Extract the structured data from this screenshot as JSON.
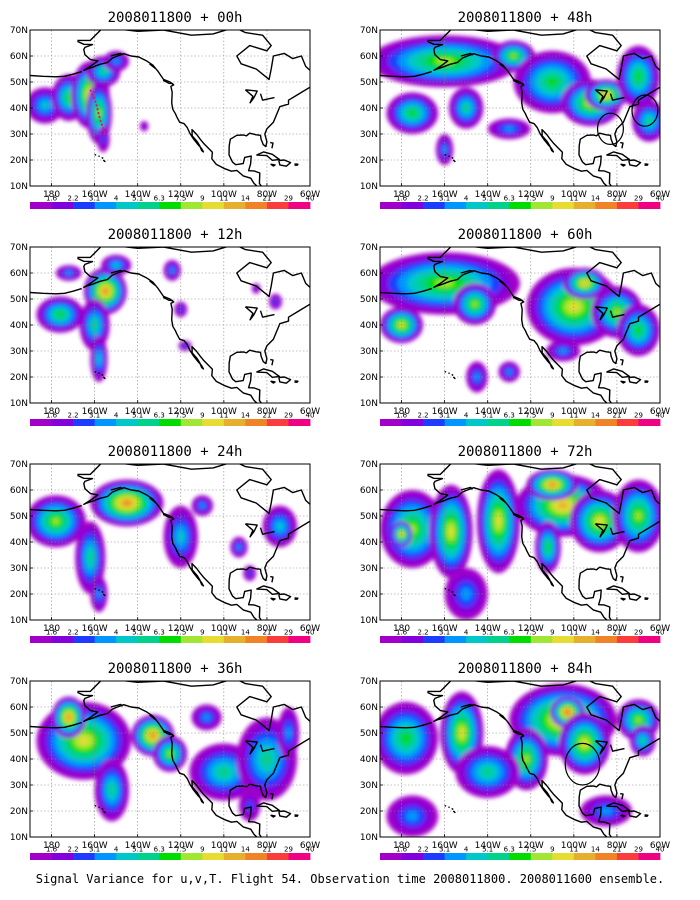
{
  "figure": {
    "caption": "Signal Variance for u,v,T. Flight 54. Observation time 2008011800. 2008011600 ensemble."
  },
  "chart_data": {
    "type": "heatmap",
    "axes": {
      "x_range": [
        -190,
        -60
      ],
      "y_range": [
        10,
        70
      ],
      "x_ticks": [
        -180,
        -160,
        -140,
        -120,
        -100,
        -80,
        -60
      ],
      "x_tick_labels": [
        "180",
        "160W",
        "140W",
        "120W",
        "100W",
        "80W",
        "60W"
      ],
      "y_ticks": [
        10,
        20,
        30,
        40,
        50,
        60,
        70
      ],
      "y_tick_labels": [
        "10N",
        "20N",
        "30N",
        "40N",
        "50N",
        "60N",
        "70N"
      ],
      "grid": true
    },
    "colorbar": {
      "levels": [
        "1.6",
        "2.2",
        "3.1",
        "4",
        "5.1",
        "6.3",
        "7.5",
        "9",
        "11",
        "14",
        "21",
        "29",
        "40"
      ],
      "colors": [
        "#a000c8",
        "#8200dc",
        "#1e3cff",
        "#0096ff",
        "#00c8c8",
        "#00d28c",
        "#00dc00",
        "#a0e632",
        "#e6dc32",
        "#e6af2d",
        "#f08228",
        "#fa3c3c",
        "#f00082"
      ]
    },
    "panels": [
      {
        "title": "2008011800 + 00h",
        "lead_hours": 0,
        "blobs": [
          [
            -183,
            41,
            9,
            7,
            4
          ],
          [
            -172,
            44,
            8,
            9,
            6
          ],
          [
            -162,
            45,
            9,
            13,
            9
          ],
          [
            -158,
            38,
            6,
            12,
            7
          ],
          [
            -156,
            54,
            8,
            6,
            5
          ],
          [
            -150,
            58,
            6,
            4,
            3
          ],
          [
            -156,
            28,
            3,
            5,
            2
          ],
          [
            -137,
            33,
            2,
            2,
            1
          ]
        ],
        "targets": [
          {
            "type": "track",
            "points": [
              [
                -162,
                47
              ],
              [
                -159,
                41
              ],
              [
                -157,
                34
              ],
              [
                -155,
                30
              ],
              [
                -158,
                37
              ],
              [
                -160,
                44
              ]
            ]
          }
        ]
      },
      {
        "title": "2008011800 + 12h",
        "lead_hours": 12,
        "blobs": [
          [
            -176,
            44,
            11,
            7,
            6
          ],
          [
            -155,
            53,
            10,
            9,
            10
          ],
          [
            -160,
            40,
            7,
            10,
            5
          ],
          [
            -158,
            27,
            4,
            9,
            4
          ],
          [
            -150,
            63,
            7,
            4,
            4
          ],
          [
            -172,
            60,
            6,
            3,
            3
          ],
          [
            -118,
            32,
            3,
            2,
            2
          ],
          [
            -124,
            61,
            4,
            4,
            3
          ],
          [
            -120,
            46,
            3,
            3,
            2
          ],
          [
            -76,
            49,
            3,
            3,
            2
          ],
          [
            -85,
            54,
            2,
            2,
            1
          ]
        ]
      },
      {
        "title": "2008011800 + 24h",
        "lead_hours": 24,
        "blobs": [
          [
            -178,
            48,
            14,
            10,
            7
          ],
          [
            -145,
            55,
            17,
            9,
            10
          ],
          [
            -162,
            34,
            7,
            14,
            5
          ],
          [
            -158,
            20,
            4,
            7,
            3
          ],
          [
            -120,
            42,
            8,
            12,
            4
          ],
          [
            -110,
            54,
            5,
            4,
            3
          ],
          [
            -74,
            46,
            8,
            8,
            4
          ],
          [
            -93,
            38,
            4,
            4,
            3
          ],
          [
            -88,
            28,
            3,
            3,
            2
          ]
        ]
      },
      {
        "title": "2008011800 + 36h",
        "lead_hours": 36,
        "blobs": [
          [
            -165,
            47,
            22,
            15,
            8
          ],
          [
            -172,
            56,
            8,
            8,
            10
          ],
          [
            -133,
            49,
            10,
            8,
            10
          ],
          [
            -125,
            42,
            8,
            7,
            7
          ],
          [
            -152,
            28,
            8,
            12,
            5
          ],
          [
            -100,
            35,
            16,
            11,
            5
          ],
          [
            -80,
            40,
            14,
            16,
            5
          ],
          [
            -108,
            56,
            7,
            5,
            3
          ],
          [
            -88,
            22,
            5,
            6,
            2
          ],
          [
            -70,
            50,
            5,
            10,
            3
          ]
        ]
      },
      {
        "title": "2008011800 + 48h",
        "lead_hours": 48,
        "blobs": [
          [
            -160,
            58,
            35,
            10,
            7
          ],
          [
            -175,
            38,
            12,
            8,
            6
          ],
          [
            -150,
            40,
            8,
            8,
            5
          ],
          [
            -128,
            60,
            10,
            6,
            7
          ],
          [
            -110,
            50,
            18,
            12,
            6
          ],
          [
            -92,
            42,
            14,
            9,
            8
          ],
          [
            -85,
            45,
            10,
            6,
            9
          ],
          [
            -70,
            52,
            10,
            12,
            6
          ],
          [
            -65,
            35,
            8,
            8,
            5
          ],
          [
            -130,
            32,
            10,
            4,
            3
          ],
          [
            -160,
            24,
            4,
            6,
            3
          ]
        ],
        "targets": [
          {
            "type": "circle",
            "center": [
              -83,
              32
            ],
            "radius": 6
          },
          {
            "type": "circle",
            "center": [
              -67,
              39
            ],
            "radius": 6
          }
        ]
      },
      {
        "title": "2008011800 + 60h",
        "lead_hours": 60,
        "blobs": [
          [
            -160,
            56,
            35,
            12,
            7
          ],
          [
            -180,
            40,
            10,
            7,
            8
          ],
          [
            -146,
            48,
            10,
            8,
            7
          ],
          [
            -100,
            47,
            22,
            15,
            8
          ],
          [
            -95,
            56,
            10,
            6,
            9
          ],
          [
            -80,
            45,
            12,
            10,
            7
          ],
          [
            -70,
            38,
            10,
            10,
            6
          ],
          [
            -145,
            20,
            5,
            6,
            3
          ],
          [
            -130,
            22,
            5,
            4,
            3
          ],
          [
            -105,
            30,
            8,
            4,
            3
          ]
        ]
      },
      {
        "title": "2008011800 + 72h",
        "lead_hours": 72,
        "blobs": [
          [
            -175,
            45,
            15,
            15,
            7
          ],
          [
            -180,
            43,
            5,
            5,
            9
          ],
          [
            -157,
            44,
            10,
            18,
            8
          ],
          [
            -135,
            48,
            10,
            20,
            8
          ],
          [
            -105,
            54,
            22,
            12,
            9
          ],
          [
            -110,
            62,
            12,
            6,
            10
          ],
          [
            -88,
            48,
            14,
            12,
            8
          ],
          [
            -70,
            50,
            12,
            14,
            7
          ],
          [
            -150,
            20,
            10,
            10,
            3
          ],
          [
            -112,
            38,
            6,
            10,
            6
          ]
        ]
      },
      {
        "title": "2008011800 + 84h",
        "lead_hours": 84,
        "blobs": [
          [
            -178,
            48,
            15,
            14,
            6
          ],
          [
            -152,
            50,
            10,
            16,
            8
          ],
          [
            -105,
            55,
            25,
            14,
            9
          ],
          [
            -103,
            58,
            8,
            6,
            11
          ],
          [
            -95,
            46,
            12,
            12,
            8
          ],
          [
            -122,
            40,
            10,
            12,
            7
          ],
          [
            -70,
            55,
            10,
            8,
            7
          ],
          [
            -68,
            47,
            6,
            6,
            5
          ],
          [
            -140,
            35,
            15,
            10,
            5
          ],
          [
            -85,
            20,
            12,
            6,
            3
          ],
          [
            -175,
            18,
            12,
            8,
            3
          ]
        ],
        "targets": [
          {
            "type": "circle",
            "center": [
              -96,
              38
            ],
            "radius": 8
          }
        ]
      }
    ]
  }
}
